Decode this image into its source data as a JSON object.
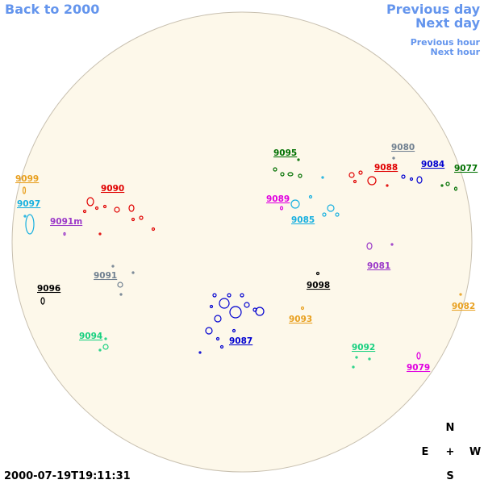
{
  "navigation": {
    "back": "Back to 2000",
    "previous_day": "Previous day",
    "next_day": "Next day",
    "previous_hour": "Previous hour",
    "next_hour": "Next hour"
  },
  "timestamp": "2000-07-19T19:11:31",
  "compass": {
    "north": "N",
    "east": "E",
    "center": "+",
    "west": "W",
    "south": "S"
  },
  "regions": [
    {
      "label": "9099",
      "color": "#e8a020"
    },
    {
      "label": "9097",
      "color": "#18b0e0"
    },
    {
      "label": "9091m",
      "color": "#9a38c8"
    },
    {
      "label": "9090",
      "color": "#e00000"
    },
    {
      "label": "9096",
      "color": "#000000"
    },
    {
      "label": "9091",
      "color": "#708090"
    },
    {
      "label": "9094",
      "color": "#18d080"
    },
    {
      "label": "9095",
      "color": "#007000"
    },
    {
      "label": "9089",
      "color": "#e000e0"
    },
    {
      "label": "9085",
      "color": "#18b0e0"
    },
    {
      "label": "9080",
      "color": "#708090"
    },
    {
      "label": "9088",
      "color": "#e00000"
    },
    {
      "label": "9084",
      "color": "#0000d0"
    },
    {
      "label": "9077",
      "color": "#007000"
    },
    {
      "label": "9081",
      "color": "#9a38c8"
    },
    {
      "label": "9098",
      "color": "#000000"
    },
    {
      "label": "9093",
      "color": "#e8a020"
    },
    {
      "label": "9087",
      "color": "#0000d0"
    },
    {
      "label": "9082",
      "color": "#e8a020"
    },
    {
      "label": "9092",
      "color": "#18d080"
    },
    {
      "label": "9079",
      "color": "#e000e0"
    }
  ]
}
